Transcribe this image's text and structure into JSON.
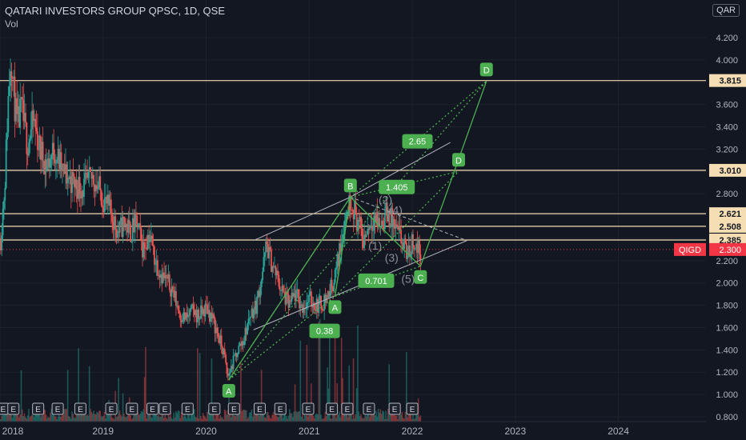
{
  "header": {
    "title": "QATARI INVESTORS GROUP QPSC, 1D, QSE",
    "volume_label": "Vol",
    "currency": "QAR"
  },
  "colors": {
    "background": "#131722",
    "grid": "#1e222d",
    "axis_text": "#b2b5be",
    "level_line": "#f5deb3",
    "pattern_green": "#4caf50",
    "channel_line": "#b2b5be",
    "candle_up": "#26a69a",
    "candle_down": "#ef5350",
    "price_badge": "#f23645"
  },
  "chart_data": {
    "type": "candlestick",
    "symbol_tag": "QIGD",
    "last_price": 2.3,
    "last_price_label": "2.300",
    "y_axis": {
      "min": 0.8,
      "max": 4.3,
      "ticks": [
        "0.800",
        "1.000",
        "1.200",
        "1.400",
        "1.600",
        "1.800",
        "2.000",
        "2.200",
        "2.400",
        "2.600",
        "2.800",
        "3.000",
        "3.200",
        "3.400",
        "3.600",
        "3.800",
        "4.000",
        "4.200"
      ],
      "tick_values": [
        0.8,
        1.0,
        1.2,
        1.4,
        1.6,
        1.8,
        2.0,
        2.2,
        2.4,
        2.6,
        2.8,
        3.0,
        3.2,
        3.4,
        3.6,
        3.8,
        4.0,
        4.2
      ]
    },
    "x_axis": {
      "ticks": [
        "2018",
        "2019",
        "2020",
        "2021",
        "2022",
        "2023",
        "2024"
      ],
      "tick_dates": [
        2018.0,
        2019.0,
        2020.0,
        2021.0,
        2022.0,
        2023.0,
        2024.0
      ],
      "min": 2018.0,
      "max": 2024.85
    },
    "price_path": [
      [
        2018.0,
        2.4
      ],
      [
        2018.04,
        2.9
      ],
      [
        2018.07,
        3.6
      ],
      [
        2018.1,
        4.1
      ],
      [
        2018.12,
        3.75
      ],
      [
        2018.16,
        3.4
      ],
      [
        2018.2,
        3.55
      ],
      [
        2018.26,
        3.25
      ],
      [
        2018.32,
        3.45
      ],
      [
        2018.38,
        3.2
      ],
      [
        2018.45,
        3.05
      ],
      [
        2018.52,
        3.2
      ],
      [
        2018.6,
        3.0
      ],
      [
        2018.7,
        2.9
      ],
      [
        2018.8,
        2.85
      ],
      [
        2018.9,
        2.95
      ],
      [
        2019.0,
        2.75
      ],
      [
        2019.08,
        2.6
      ],
      [
        2019.14,
        2.45
      ],
      [
        2019.2,
        2.55
      ],
      [
        2019.26,
        2.45
      ],
      [
        2019.32,
        2.55
      ],
      [
        2019.38,
        2.3
      ],
      [
        2019.44,
        2.45
      ],
      [
        2019.5,
        2.2
      ],
      [
        2019.58,
        2.05
      ],
      [
        2019.66,
        1.95
      ],
      [
        2019.74,
        1.72
      ],
      [
        2019.8,
        1.68
      ],
      [
        2019.86,
        1.75
      ],
      [
        2019.92,
        1.7
      ],
      [
        2020.0,
        1.78
      ],
      [
        2020.06,
        1.66
      ],
      [
        2020.12,
        1.5
      ],
      [
        2020.17,
        1.35
      ],
      [
        2020.2,
        1.15
      ],
      [
        2020.24,
        1.25
      ],
      [
        2020.3,
        1.4
      ],
      [
        2020.36,
        1.5
      ],
      [
        2020.42,
        1.72
      ],
      [
        2020.48,
        1.8
      ],
      [
        2020.54,
        2.1
      ],
      [
        2020.58,
        2.35
      ],
      [
        2020.62,
        2.2
      ],
      [
        2020.68,
        2.05
      ],
      [
        2020.74,
        1.9
      ],
      [
        2020.8,
        1.8
      ],
      [
        2020.86,
        1.9
      ],
      [
        2020.92,
        1.78
      ],
      [
        2021.0,
        1.85
      ],
      [
        2021.06,
        1.8
      ],
      [
        2021.12,
        1.82
      ],
      [
        2021.18,
        1.9
      ],
      [
        2021.24,
        2.05
      ],
      [
        2021.28,
        2.25
      ],
      [
        2021.32,
        2.5
      ],
      [
        2021.36,
        2.65
      ],
      [
        2021.4,
        2.77
      ],
      [
        2021.44,
        2.62
      ],
      [
        2021.48,
        2.5
      ],
      [
        2021.52,
        2.38
      ],
      [
        2021.56,
        2.5
      ],
      [
        2021.62,
        2.6
      ],
      [
        2021.68,
        2.52
      ],
      [
        2021.74,
        2.62
      ],
      [
        2021.8,
        2.55
      ],
      [
        2021.84,
        2.45
      ],
      [
        2021.88,
        2.4
      ],
      [
        2021.92,
        2.3
      ],
      [
        2021.96,
        2.25
      ],
      [
        2022.0,
        2.4
      ],
      [
        2022.04,
        2.3
      ],
      [
        2022.08,
        2.3
      ]
    ],
    "level_lines": [
      {
        "value": 3.815,
        "label": "3.815"
      },
      {
        "value": 3.01,
        "label": "3.010"
      },
      {
        "value": 2.621,
        "label": "2.621"
      },
      {
        "value": 2.508,
        "label": "2.508"
      },
      {
        "value": 2.385,
        "label": "2.385"
      }
    ],
    "abcd_points": [
      {
        "label": "A",
        "x": 2020.22,
        "y": 1.13
      },
      {
        "label": "B",
        "x": 2021.4,
        "y": 2.77
      },
      {
        "label": "A",
        "x": 2021.25,
        "y": 1.88
      },
      {
        "label": "C",
        "x": 2022.08,
        "y": 2.15
      },
      {
        "label": "D",
        "x": 2022.45,
        "y": 3.0
      },
      {
        "label": "D",
        "x": 2022.72,
        "y": 3.81
      }
    ],
    "ratio_labels": [
      {
        "label": "0.38",
        "x": 2021.15,
        "y": 1.57
      },
      {
        "label": "0.701",
        "x": 2021.65,
        "y": 2.02
      },
      {
        "label": "1.405",
        "x": 2021.85,
        "y": 2.86
      },
      {
        "label": "2.65",
        "x": 2022.05,
        "y": 3.27
      }
    ],
    "wave_labels": [
      {
        "label": "(1)",
        "x": 2021.64,
        "y": 2.3
      },
      {
        "label": "(2)",
        "x": 2021.74,
        "y": 2.71
      },
      {
        "label": "(3)",
        "x": 2021.8,
        "y": 2.19
      },
      {
        "label": "(4)",
        "x": 2021.84,
        "y": 2.62
      },
      {
        "label": "(5)",
        "x": 2021.96,
        "y": 2.0
      }
    ],
    "event_markers": {
      "label": "E",
      "dates": [
        2018.03,
        2018.13,
        2018.37,
        2018.56,
        2018.78,
        2019.08,
        2019.28,
        2019.48,
        2019.6,
        2019.82,
        2020.08,
        2020.27,
        2020.52,
        2020.72,
        2020.99,
        2021.22,
        2021.37,
        2021.58,
        2021.83,
        2022.0
      ]
    }
  }
}
